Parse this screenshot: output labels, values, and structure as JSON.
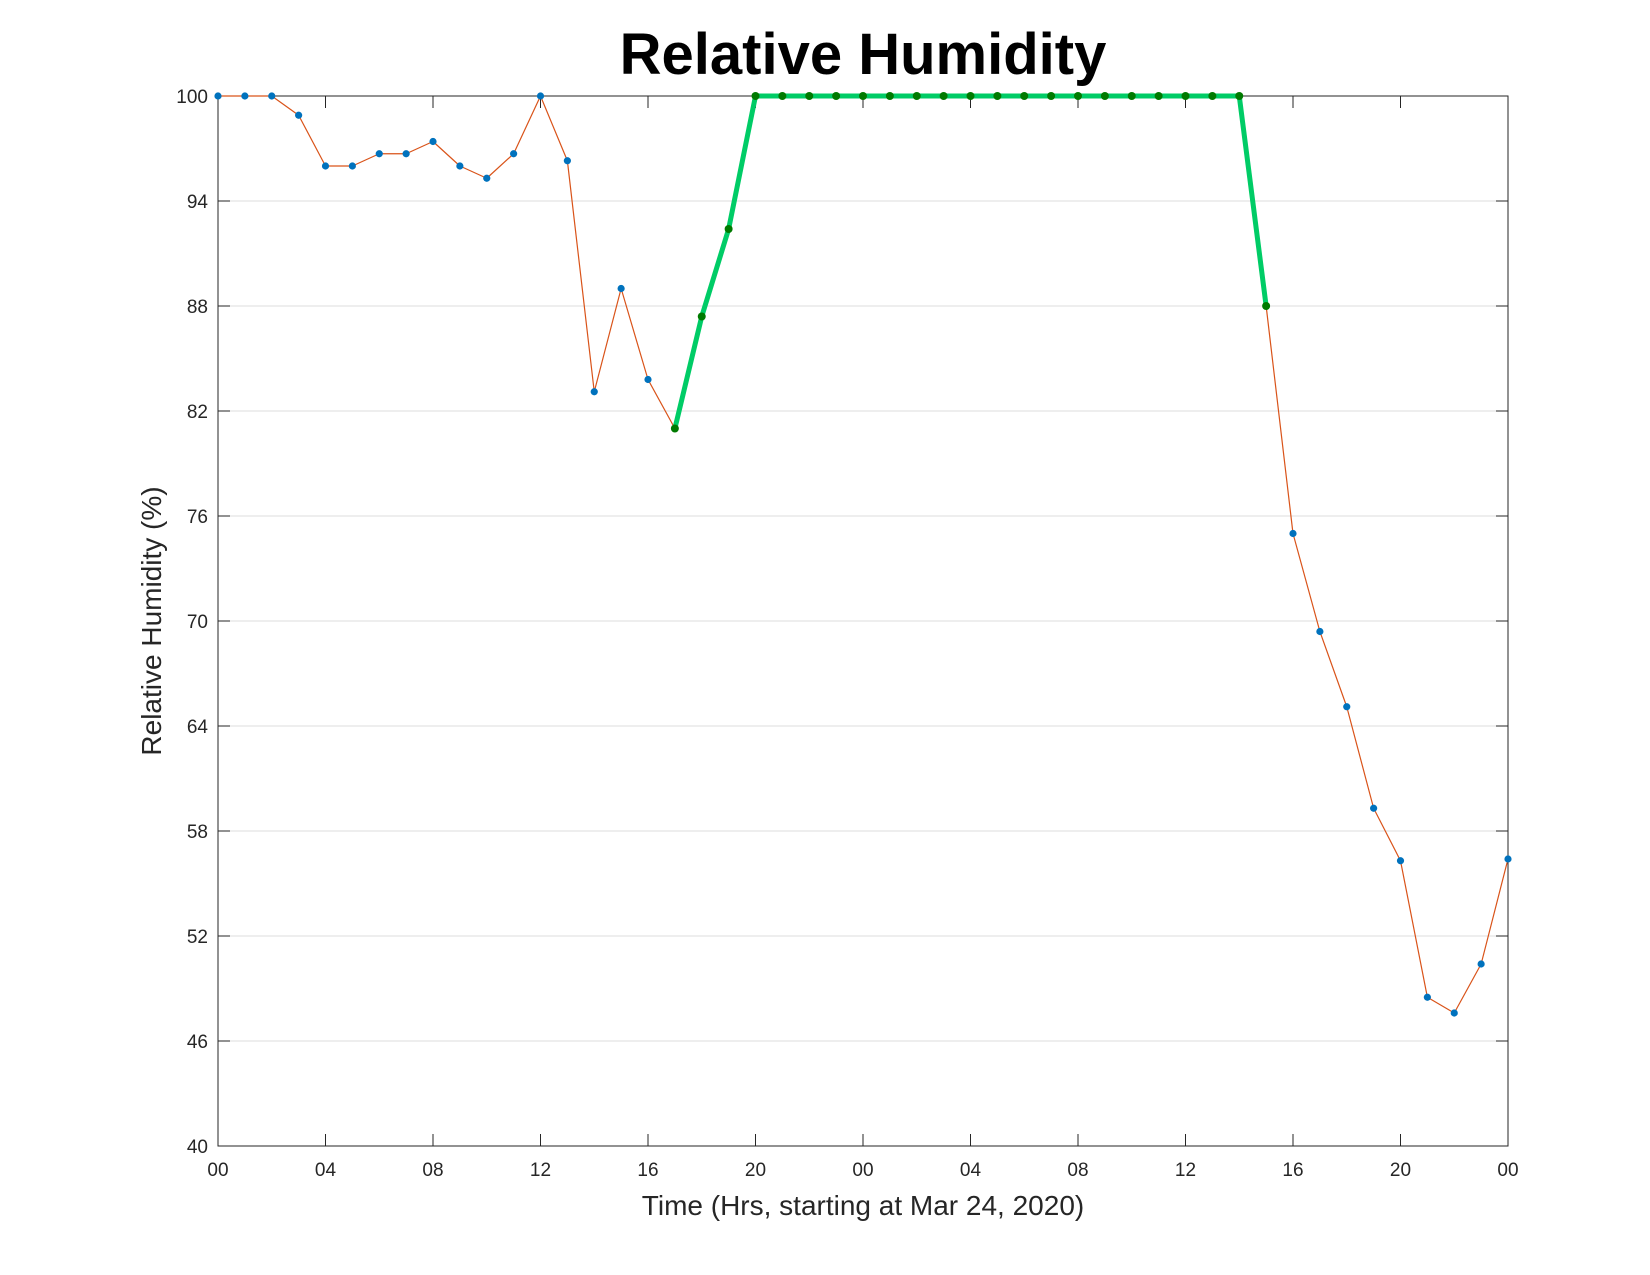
{
  "chart_data": {
    "type": "line",
    "title": "Relative Humidity",
    "xlabel": "Time (Hrs, starting at Mar 24, 2020)",
    "ylabel": "Relative Humidity (%)",
    "ylim": [
      40,
      100
    ],
    "xlim": [
      "2020-03-24 00:00",
      "2020-03-26 00:00"
    ],
    "yticks": [
      40,
      46,
      52,
      58,
      64,
      70,
      76,
      82,
      88,
      94,
      100
    ],
    "xticks": [
      {
        "t": "2020-03-24 00:00",
        "label": "00"
      },
      {
        "t": "2020-03-24 04:00",
        "label": "04"
      },
      {
        "t": "2020-03-24 08:00",
        "label": "08"
      },
      {
        "t": "2020-03-24 12:00",
        "label": "12"
      },
      {
        "t": "2020-03-24 16:00",
        "label": "16"
      },
      {
        "t": "2020-03-24 20:00",
        "label": "20"
      },
      {
        "t": "2020-03-25 00:00",
        "label": "00"
      },
      {
        "t": "2020-03-25 04:00",
        "label": "04"
      },
      {
        "t": "2020-03-25 08:00",
        "label": "08"
      },
      {
        "t": "2020-03-25 12:00",
        "label": "12"
      },
      {
        "t": "2020-03-25 16:00",
        "label": "16"
      },
      {
        "t": "2020-03-25 20:00",
        "label": "20"
      },
      {
        "t": "2020-03-26 00:00",
        "label": "00"
      }
    ],
    "grid": "horizontal",
    "series": [
      {
        "style": "thin line with markers",
        "color": "#D95319",
        "marker_color": "#0072BD",
        "x": [
          "2020-03-24 00:00",
          "2020-03-24 01:00",
          "2020-03-24 02:00",
          "2020-03-24 03:00",
          "2020-03-24 04:00",
          "2020-03-24 05:00",
          "2020-03-24 06:00",
          "2020-03-24 07:00",
          "2020-03-24 08:00",
          "2020-03-24 09:00",
          "2020-03-24 10:00",
          "2020-03-24 11:00",
          "2020-03-24 12:00",
          "2020-03-24 13:00",
          "2020-03-24 14:00",
          "2020-03-24 15:00",
          "2020-03-24 16:00",
          "2020-03-24 17:00",
          "2020-03-24 18:00",
          "2020-03-24 19:00",
          "2020-03-24 20:00",
          "2020-03-24 21:00",
          "2020-03-24 22:00",
          "2020-03-24 23:00",
          "2020-03-25 00:00",
          "2020-03-25 01:00",
          "2020-03-25 02:00",
          "2020-03-25 03:00",
          "2020-03-25 04:00",
          "2020-03-25 05:00",
          "2020-03-25 06:00",
          "2020-03-25 07:00",
          "2020-03-25 08:00",
          "2020-03-25 09:00",
          "2020-03-25 10:00",
          "2020-03-25 11:00",
          "2020-03-25 12:00",
          "2020-03-25 13:00",
          "2020-03-25 14:00",
          "2020-03-25 15:00",
          "2020-03-25 16:00",
          "2020-03-25 17:00",
          "2020-03-25 18:00",
          "2020-03-25 19:00",
          "2020-03-25 20:00",
          "2020-03-25 21:00",
          "2020-03-25 22:00",
          "2020-03-25 23:00",
          "2020-03-26 00:00"
        ],
        "values": [
          100,
          100,
          100,
          98.9,
          96,
          96,
          96.7,
          96.7,
          97.4,
          96,
          95.3,
          96.7,
          100,
          96.3,
          83.1,
          89,
          83.8,
          81,
          87.4,
          92.4,
          100,
          100,
          100,
          100,
          100,
          100,
          100,
          100,
          100,
          100,
          100,
          100,
          100,
          100,
          100,
          100,
          100,
          100,
          100,
          88,
          75,
          69.4,
          65.1,
          59.3,
          56.3,
          48.5,
          47.6,
          50.4,
          56.4
        ]
      },
      {
        "style": "thick highlight with markers",
        "color": "#00CC66",
        "marker_color": "#007A00",
        "x": [
          "2020-03-24 17:00",
          "2020-03-24 18:00",
          "2020-03-24 19:00",
          "2020-03-24 20:00",
          "2020-03-24 21:00",
          "2020-03-24 22:00",
          "2020-03-24 23:00",
          "2020-03-25 00:00",
          "2020-03-25 01:00",
          "2020-03-25 02:00",
          "2020-03-25 03:00",
          "2020-03-25 04:00",
          "2020-03-25 05:00",
          "2020-03-25 06:00",
          "2020-03-25 07:00",
          "2020-03-25 08:00",
          "2020-03-25 09:00",
          "2020-03-25 10:00",
          "2020-03-25 11:00",
          "2020-03-25 12:00",
          "2020-03-25 13:00",
          "2020-03-25 14:00",
          "2020-03-25 15:00"
        ],
        "values": [
          81,
          87.4,
          92.4,
          100,
          100,
          100,
          100,
          100,
          100,
          100,
          100,
          100,
          100,
          100,
          100,
          100,
          100,
          100,
          100,
          100,
          100,
          100,
          88
        ]
      }
    ]
  }
}
